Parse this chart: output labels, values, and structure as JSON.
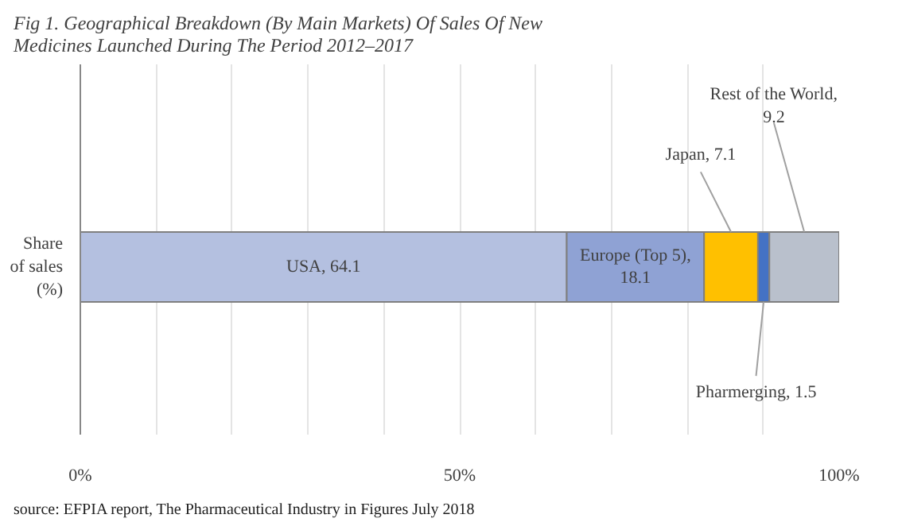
{
  "chart_data": {
    "type": "bar",
    "orientation": "horizontal",
    "stacked": true,
    "title": "Fig 1. Geographical Breakdown (By Main Markets) Of Sales Of New\nMedicines Launched During The Period 2012–2017",
    "categories": [
      "Share of sales (%)"
    ],
    "series": [
      {
        "color": "#b4c0e0",
        "values": [
          64.1
        ],
        "value_labels": [
          "USA, 64.1"
        ]
      },
      {
        "color": "#8fa2d4",
        "values": [
          18.1
        ],
        "value_labels": [
          "Europe (Top 5), 18.1"
        ]
      },
      {
        "color": "#ffc000",
        "values": [
          7.1
        ],
        "value_labels": [
          "Japan, 7.1"
        ]
      },
      {
        "color": "#4472c4",
        "values": [
          1.5
        ],
        "value_labels": [
          "Pharmerging, 1.5"
        ]
      },
      {
        "color": "#b9c0cc",
        "values": [
          9.2
        ],
        "value_labels": [
          "Rest of the World, 9.2"
        ]
      }
    ],
    "xlim": [
      0,
      100
    ],
    "xticks": [
      {
        "value": 0,
        "label": "0%"
      },
      {
        "value": 10,
        "label": null
      },
      {
        "value": 20,
        "label": null
      },
      {
        "value": 30,
        "label": null
      },
      {
        "value": 40,
        "label": null
      },
      {
        "value": 50,
        "label": "50%"
      },
      {
        "value": 60,
        "label": null
      },
      {
        "value": 70,
        "label": null
      },
      {
        "value": 80,
        "label": null
      },
      {
        "value": 90,
        "label": null
      },
      {
        "value": 100,
        "label": "100%"
      }
    ],
    "grid": "x",
    "annotations": [
      "source: EFPIA report, The Pharmaceutical Industry in Figures July 2018"
    ]
  }
}
